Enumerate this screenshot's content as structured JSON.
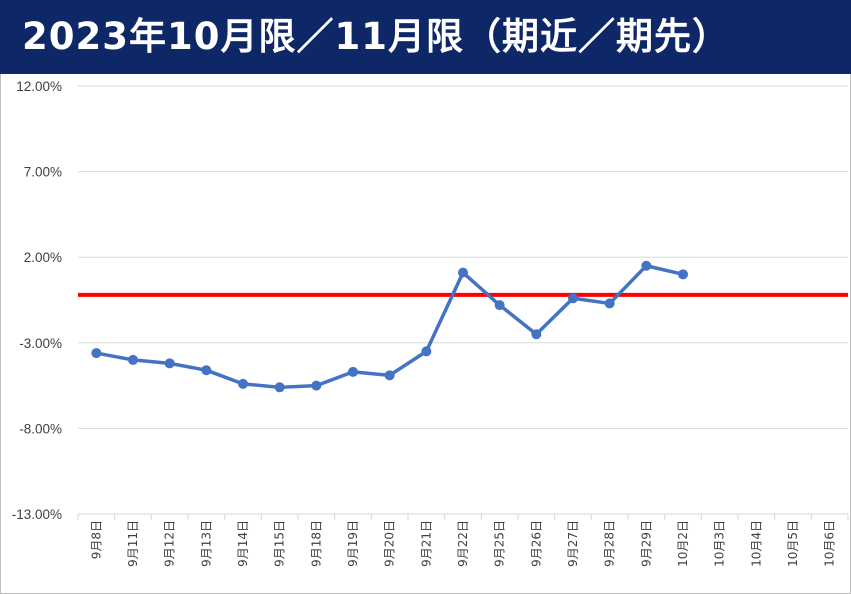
{
  "title": "2023年10月限／11月限（期近／期先）",
  "chart_data": {
    "type": "line",
    "title": "2023年10月限／11月限（期近／期先）",
    "xlabel": "",
    "ylabel": "",
    "categories": [
      "9月8日",
      "9月11日",
      "9月12日",
      "9月13日",
      "9月14日",
      "9月15日",
      "9月18日",
      "9月19日",
      "9月20日",
      "9月21日",
      "9月22日",
      "9月25日",
      "9月26日",
      "9月27日",
      "9月28日",
      "9月29日",
      "10月2日",
      "10月3日",
      "10月4日",
      "10月5日",
      "10月6日"
    ],
    "series": [
      {
        "values": [
          -3.6,
          -4.0,
          -4.2,
          -4.6,
          -5.4,
          -5.6,
          -5.5,
          -4.7,
          -4.9,
          -3.5,
          1.1,
          -0.8,
          -2.5,
          -0.4,
          -0.7,
          1.5,
          1.0,
          null,
          null,
          null,
          null
        ],
        "color": "#4472c4"
      }
    ],
    "reference_line": {
      "value": -0.2,
      "color": "#ff0000"
    },
    "ylim": [
      -13,
      12
    ],
    "yticks": [
      12,
      7,
      2,
      -3,
      -8,
      -13
    ],
    "ytick_labels": [
      "12.00%",
      "7.00%",
      "2.00%",
      "-3.00%",
      "-8.00%",
      "-13.00%"
    ],
    "grid": true,
    "legend": "none"
  }
}
